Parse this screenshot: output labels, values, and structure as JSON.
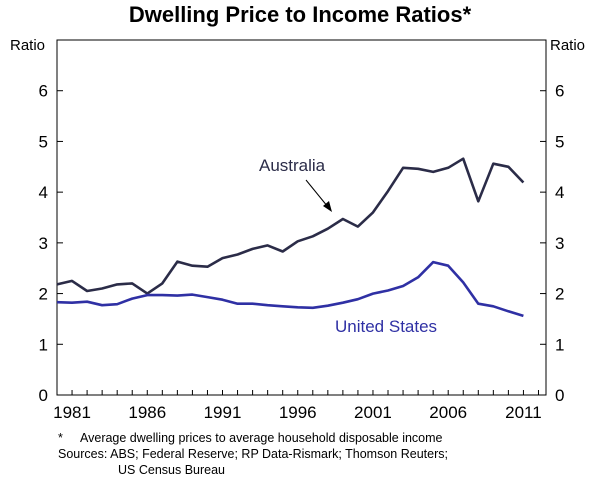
{
  "chart_data": {
    "type": "line",
    "title": "Dwelling Price to Income Ratios*",
    "ylabel_left": "Ratio",
    "ylabel_right": "Ratio",
    "ylim": [
      0,
      7
    ],
    "yticks": [
      0,
      1,
      2,
      3,
      4,
      5,
      6
    ],
    "xlim": [
      1980,
      2012.5
    ],
    "xticks": [
      1981,
      1986,
      1991,
      1996,
      2001,
      2006,
      2011
    ],
    "grid": false,
    "series": [
      {
        "name": "Australia",
        "color": "#2b2c48",
        "x": [
          1980,
          1981,
          1982,
          1983,
          1984,
          1985,
          1986,
          1987,
          1988,
          1989,
          1990,
          1991,
          1992,
          1993,
          1994,
          1995,
          1996,
          1997,
          1998,
          1999,
          2000,
          2001,
          2002,
          2003,
          2004,
          2005,
          2006,
          2007,
          2008,
          2009,
          2010,
          2011
        ],
        "values": [
          2.18,
          2.25,
          2.05,
          2.1,
          2.18,
          2.2,
          2.0,
          2.2,
          2.63,
          2.55,
          2.53,
          2.7,
          2.77,
          2.88,
          2.95,
          2.83,
          3.03,
          3.13,
          3.28,
          3.47,
          3.32,
          3.6,
          4.02,
          4.48,
          4.46,
          4.4,
          4.48,
          4.66,
          3.82,
          4.56,
          4.5,
          4.19
        ]
      },
      {
        "name": "United States",
        "color": "#2f30a4",
        "x": [
          1980,
          1981,
          1982,
          1983,
          1984,
          1985,
          1986,
          1987,
          1988,
          1989,
          1990,
          1991,
          1992,
          1993,
          1994,
          1995,
          1996,
          1997,
          1998,
          1999,
          2000,
          2001,
          2002,
          2003,
          2004,
          2005,
          2006,
          2007,
          2008,
          2009,
          2010,
          2011
        ],
        "values": [
          1.83,
          1.82,
          1.84,
          1.77,
          1.79,
          1.9,
          1.97,
          1.97,
          1.96,
          1.98,
          1.93,
          1.88,
          1.8,
          1.8,
          1.77,
          1.75,
          1.73,
          1.72,
          1.76,
          1.82,
          1.89,
          2.0,
          2.06,
          2.15,
          2.32,
          2.62,
          2.55,
          2.22,
          1.8,
          1.75,
          1.65,
          1.56
        ]
      }
    ],
    "annotations": [
      {
        "text": "Australia",
        "series": "Australia"
      },
      {
        "text": "United States",
        "series": "United States"
      }
    ]
  },
  "notes": {
    "footnote_marker": "*",
    "footnote_text": "Average dwelling prices to average household disposable income",
    "sources_line1": "Sources: ABS; Federal Reserve; RP Data-Rismark; Thomson Reuters;",
    "sources_line2": "US Census Bureau"
  }
}
